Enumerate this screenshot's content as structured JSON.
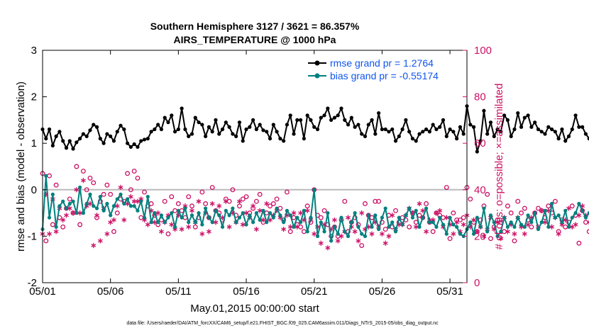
{
  "chart_data": {
    "type": "line",
    "title_line1": "Southern Hemisphere 3127 / 3621 = 86.357%",
    "title_line2": "AIRS_TEMPERATURE @ 1000 hPa",
    "xlabel": "May.01,2015 00:00:00 start",
    "ylabel_left": "rmse and bias (model - observation)",
    "ylabel_right": "# of obs: o=possible; ×=assimilated",
    "x_ticks": [
      "05/01",
      "05/06",
      "05/11",
      "05/16",
      "05/21",
      "05/26",
      "05/31"
    ],
    "x_tick_values": [
      0,
      5,
      10,
      15,
      20,
      25,
      30
    ],
    "xlim": [
      0,
      31.25
    ],
    "y_left_ticks": [
      "-2",
      "-1",
      "0",
      "1",
      "2",
      "3"
    ],
    "ylim_left": [
      -2,
      3
    ],
    "y_right_ticks": [
      "0",
      "20",
      "40",
      "60",
      "80",
      "100"
    ],
    "ylim_right": [
      0,
      100
    ],
    "zero_line": 0,
    "legend": {
      "position": "top-right",
      "rmse_label": "rmse grand pr = 1.2764",
      "bias_label": "bias grand pr = -0.55174"
    },
    "colors": {
      "rmse": "#000000",
      "bias": "#00807e",
      "obs": "#cc1166",
      "legend_text": "#1155ee",
      "zero_line": "#bbbbbb"
    },
    "series": [
      {
        "name": "rmse",
        "axis": "left",
        "x_start": 0,
        "x_step": 0.25,
        "values": [
          1.3,
          1.1,
          1.3,
          0.95,
          1.15,
          1.25,
          1.05,
          0.9,
          1.05,
          0.88,
          1.02,
          1.1,
          1.2,
          1.15,
          1.28,
          1.4,
          1.35,
          1.1,
          1.0,
          1.2,
          1.15,
          1.05,
          1.25,
          1.38,
          1.3,
          1.0,
          0.92,
          0.98,
          0.92,
          1.05,
          1.08,
          1.1,
          1.25,
          1.3,
          1.4,
          1.3,
          1.55,
          1.45,
          1.6,
          1.25,
          1.3,
          1.75,
          1.3,
          1.15,
          1.2,
          1.55,
          1.45,
          1.4,
          1.15,
          1.35,
          1.25,
          1.5,
          1.2,
          1.3,
          1.45,
          1.35,
          1.2,
          1.15,
          1.45,
          1.05,
          1.3,
          1.35,
          1.5,
          1.3,
          1.4,
          1.28,
          1.25,
          1.1,
          1.4,
          1.25,
          1.1,
          1.05,
          1.4,
          1.6,
          1.2,
          1.5,
          1.5,
          1.1,
          1.6,
          1.5,
          1.35,
          1.3,
          1.55,
          1.6,
          1.75,
          1.5,
          1.55,
          1.6,
          1.75,
          1.5,
          1.4,
          1.55,
          1.35,
          1.4,
          1.2,
          1.15,
          1.4,
          1.5,
          1.2,
          1.65,
          1.3,
          1.3,
          1.25,
          1.3,
          1.05,
          1.15,
          1.3,
          1.5,
          1.25,
          1.1,
          1.05,
          1.2,
          1.25,
          1.3,
          1.25,
          1.4,
          1.3,
          1.35,
          1.5,
          1.15,
          1.3,
          1.25,
          1.1,
          1.35,
          1.2,
          1.8,
          1.4,
          1.35,
          0.82,
          1.05,
          1.7,
          1.2,
          1.45,
          1.15,
          1.3,
          1.25,
          1.6,
          1.5,
          1.15,
          1.3,
          1.65,
          1.35,
          1.55,
          1.6,
          1.35,
          1.45,
          1.3,
          1.25,
          1.2,
          1.35,
          1.3,
          1.25,
          1.1,
          1.3,
          1.05,
          1.15,
          1.3,
          1.6,
          1.35,
          1.35,
          1.2,
          1.1,
          1.25,
          1.6,
          1.25,
          1.35,
          1.5,
          1.3,
          1.55,
          1.25,
          1.05,
          1.45,
          1.1,
          1.25,
          1.05,
          1.2,
          1.1,
          1.25,
          1.15,
          1.35,
          1.6
        ]
      },
      {
        "name": "bias",
        "axis": "left",
        "x_start": 0,
        "x_step": 0.25,
        "values": [
          -0.85,
          0.3,
          -0.6,
          -0.1,
          -0.8,
          -0.35,
          -0.25,
          -0.4,
          -0.3,
          -0.25,
          -0.5,
          0.05,
          -0.5,
          -0.3,
          -0.1,
          -0.35,
          -0.4,
          -0.15,
          -0.45,
          -0.3,
          -0.55,
          -0.35,
          -0.2,
          -0.1,
          -0.3,
          -0.2,
          -0.35,
          -0.35,
          -0.45,
          -0.25,
          -0.6,
          -0.15,
          -0.7,
          -0.5,
          -0.7,
          -0.55,
          -0.7,
          -0.6,
          -0.5,
          -0.8,
          -0.45,
          -0.6,
          -0.4,
          -0.7,
          -0.55,
          -0.7,
          -0.5,
          -0.75,
          -0.4,
          -0.6,
          -0.7,
          -0.45,
          -0.55,
          -0.8,
          -0.45,
          -0.55,
          -0.4,
          -0.7,
          -0.6,
          -0.5,
          -0.75,
          -0.55,
          -0.7,
          -0.5,
          -0.65,
          -0.45,
          -0.7,
          -0.5,
          -0.6,
          -0.4,
          -0.55,
          -0.7,
          -0.45,
          -0.55,
          -0.8,
          -0.6,
          -0.7,
          -0.45,
          -0.9,
          -0.6,
          0.0,
          -1.0,
          -0.7,
          -0.9,
          -0.5,
          -1.1,
          -0.8,
          -0.95,
          -0.6,
          -0.9,
          -1.0,
          -0.7,
          -0.5,
          -0.8,
          -0.95,
          -1.0,
          -0.55,
          -0.8,
          -0.55,
          -0.85,
          -0.6,
          -0.4,
          -0.8,
          -0.7,
          -0.9,
          -0.6,
          -0.75,
          -0.55,
          -0.4,
          -0.6,
          -0.45,
          -0.8,
          -0.6,
          -0.4,
          -0.7,
          -0.7,
          -0.8,
          -0.6,
          -0.75,
          -0.95,
          -0.6,
          -0.75,
          -0.8,
          -0.95,
          -1.0,
          -0.85,
          -0.7,
          -0.95,
          -0.6,
          -0.8,
          -0.4,
          -0.9,
          -0.55,
          -0.7,
          -1.0,
          -0.9,
          -0.6,
          -0.8,
          -0.7,
          -0.8,
          -0.6,
          -0.75,
          -0.8,
          -0.55,
          -0.7,
          -0.5,
          -0.85,
          -0.7,
          -0.45,
          -0.8,
          -0.3,
          -0.6,
          -0.55,
          -0.7,
          -0.45,
          -0.8,
          -0.6,
          -0.5,
          -0.3,
          -0.45,
          -0.6,
          -0.5,
          -0.7,
          -0.5,
          -0.6,
          -0.2,
          -0.4,
          -0.2,
          -0.5,
          -0.45,
          -0.55,
          0.45,
          -0.65,
          -0.55,
          -0.6,
          -0.55,
          -0.7
        ]
      },
      {
        "name": "possible",
        "axis": "right",
        "marker": "o",
        "x_start": 0,
        "x_step": 0.25,
        "values": [
          47,
          18,
          46,
          25,
          42,
          28,
          24,
          32,
          36,
          30,
          50,
          25,
          48,
          40,
          45,
          43,
          28,
          35,
          38,
          42,
          38,
          22,
          30,
          36,
          35,
          47,
          40,
          48,
          45,
          28,
          39,
          33,
          34,
          29,
          25,
          27,
          35,
          21,
          37,
          31,
          34,
          31,
          28,
          37,
          33,
          24,
          28,
          39,
          34,
          28,
          41,
          31,
          30,
          27,
          36,
          35,
          40,
          29,
          33,
          36,
          37,
          30,
          32,
          35,
          38,
          26,
          30,
          33,
          34,
          36,
          32,
          27,
          39,
          22,
          28,
          25,
          24,
          22,
          33,
          26,
          40,
          29,
          28,
          31,
          25,
          20,
          24,
          20,
          27,
          35,
          22,
          26,
          28,
          25,
          16,
          34,
          29,
          28,
          35,
          35,
          26,
          23,
          29,
          24,
          31,
          26,
          28,
          27,
          24,
          30,
          26,
          29,
          28,
          34,
          26,
          22,
          30,
          29,
          28,
          41,
          19,
          30,
          27,
          27,
          28,
          41,
          36,
          26,
          22,
          27,
          33,
          38,
          19,
          24,
          27,
          26,
          22,
          33,
          30,
          18,
          35,
          30,
          32,
          27,
          24,
          30,
          32,
          31,
          28,
          33,
          30,
          35,
          22,
          27,
          24,
          26,
          33,
          29,
          17,
          31,
          26,
          22,
          31,
          32,
          30,
          28,
          13,
          22,
          32,
          29,
          35,
          30,
          7,
          24,
          30,
          26,
          29,
          26
        ]
      },
      {
        "name": "assimilated",
        "axis": "right",
        "marker": "*",
        "x_start": 0,
        "x_step": 0.25,
        "values": [
          21,
          38,
          21,
          36,
          22,
          32,
          27,
          29,
          32,
          30,
          40,
          30,
          44,
          33,
          34,
          16,
          29,
          18,
          32,
          21,
          26,
          27,
          33,
          41,
          27,
          34,
          37,
          35,
          35,
          36,
          27,
          25,
          31,
          26,
          30,
          22,
          26,
          29,
          25,
          23,
          29,
          23,
          33,
          24,
          31,
          26,
          35,
          21,
          30,
          22,
          34,
          26,
          33,
          28,
          35,
          24,
          30,
          26,
          35,
          25,
          30,
          28,
          33,
          23,
          31,
          27,
          34,
          27,
          29,
          31,
          28,
          23,
          29,
          24,
          30,
          24,
          30,
          27,
          31,
          27,
          21,
          24,
          17,
          25,
          15,
          23,
          27,
          18,
          20,
          22,
          28,
          24,
          22,
          18,
          30,
          23,
          24,
          21,
          26,
          24,
          21,
          17,
          20,
          29,
          23,
          25,
          25,
          29,
          32,
          30,
          24,
          34,
          31,
          22,
          27,
          27,
          30,
          31,
          24,
          28,
          25,
          21,
          26,
          22,
          25,
          29,
          24,
          27,
          22,
          24,
          20,
          23,
          28,
          23,
          26,
          19,
          28,
          22,
          25,
          21,
          28,
          24,
          21,
          25,
          28,
          30,
          24,
          31,
          26,
          31,
          24,
          28,
          21,
          25,
          27,
          32,
          24,
          25,
          29,
          33,
          29,
          26,
          25,
          30,
          26,
          28,
          22,
          25,
          34,
          27,
          29,
          31,
          20,
          27,
          25,
          23,
          20,
          18
        ]
      }
    ]
  },
  "footer": {
    "datafile": "data file: /Users/raeder/DAI/ATM_forcXX/CAM6_setup/f.e21.FHIST_BGC.f09_025.CAM6assim.011/Diags_NTrS_2015-05/obs_diag_output.nc"
  }
}
